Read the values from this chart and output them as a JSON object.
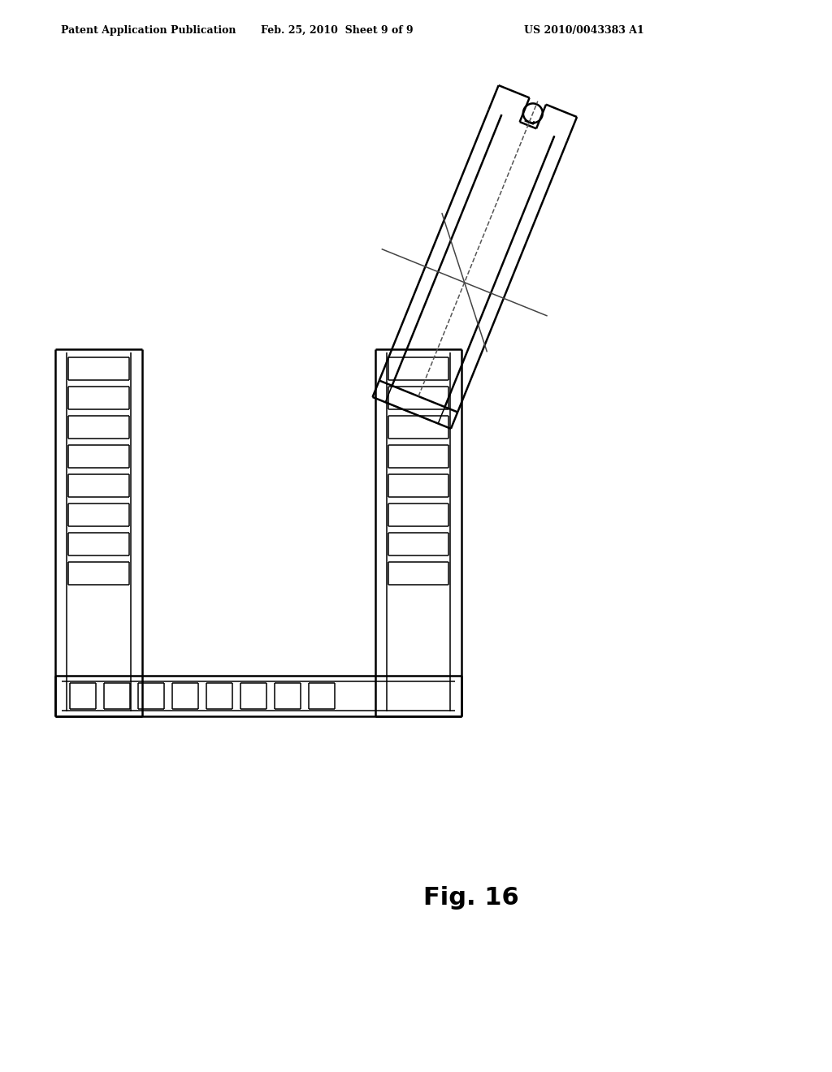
{
  "bg_color": "#ffffff",
  "line_color": "#000000",
  "header_left": "Patent Application Publication",
  "header_center": "Feb. 25, 2010  Sheet 9 of 9",
  "header_right": "US 2010/0043383 A1",
  "fig_label": "Fig. 16",
  "header_fontsize": 9,
  "fig_label_fontsize": 22,
  "lw_main": 1.8,
  "lw_thin": 1.1,
  "lw_hair": 0.8
}
